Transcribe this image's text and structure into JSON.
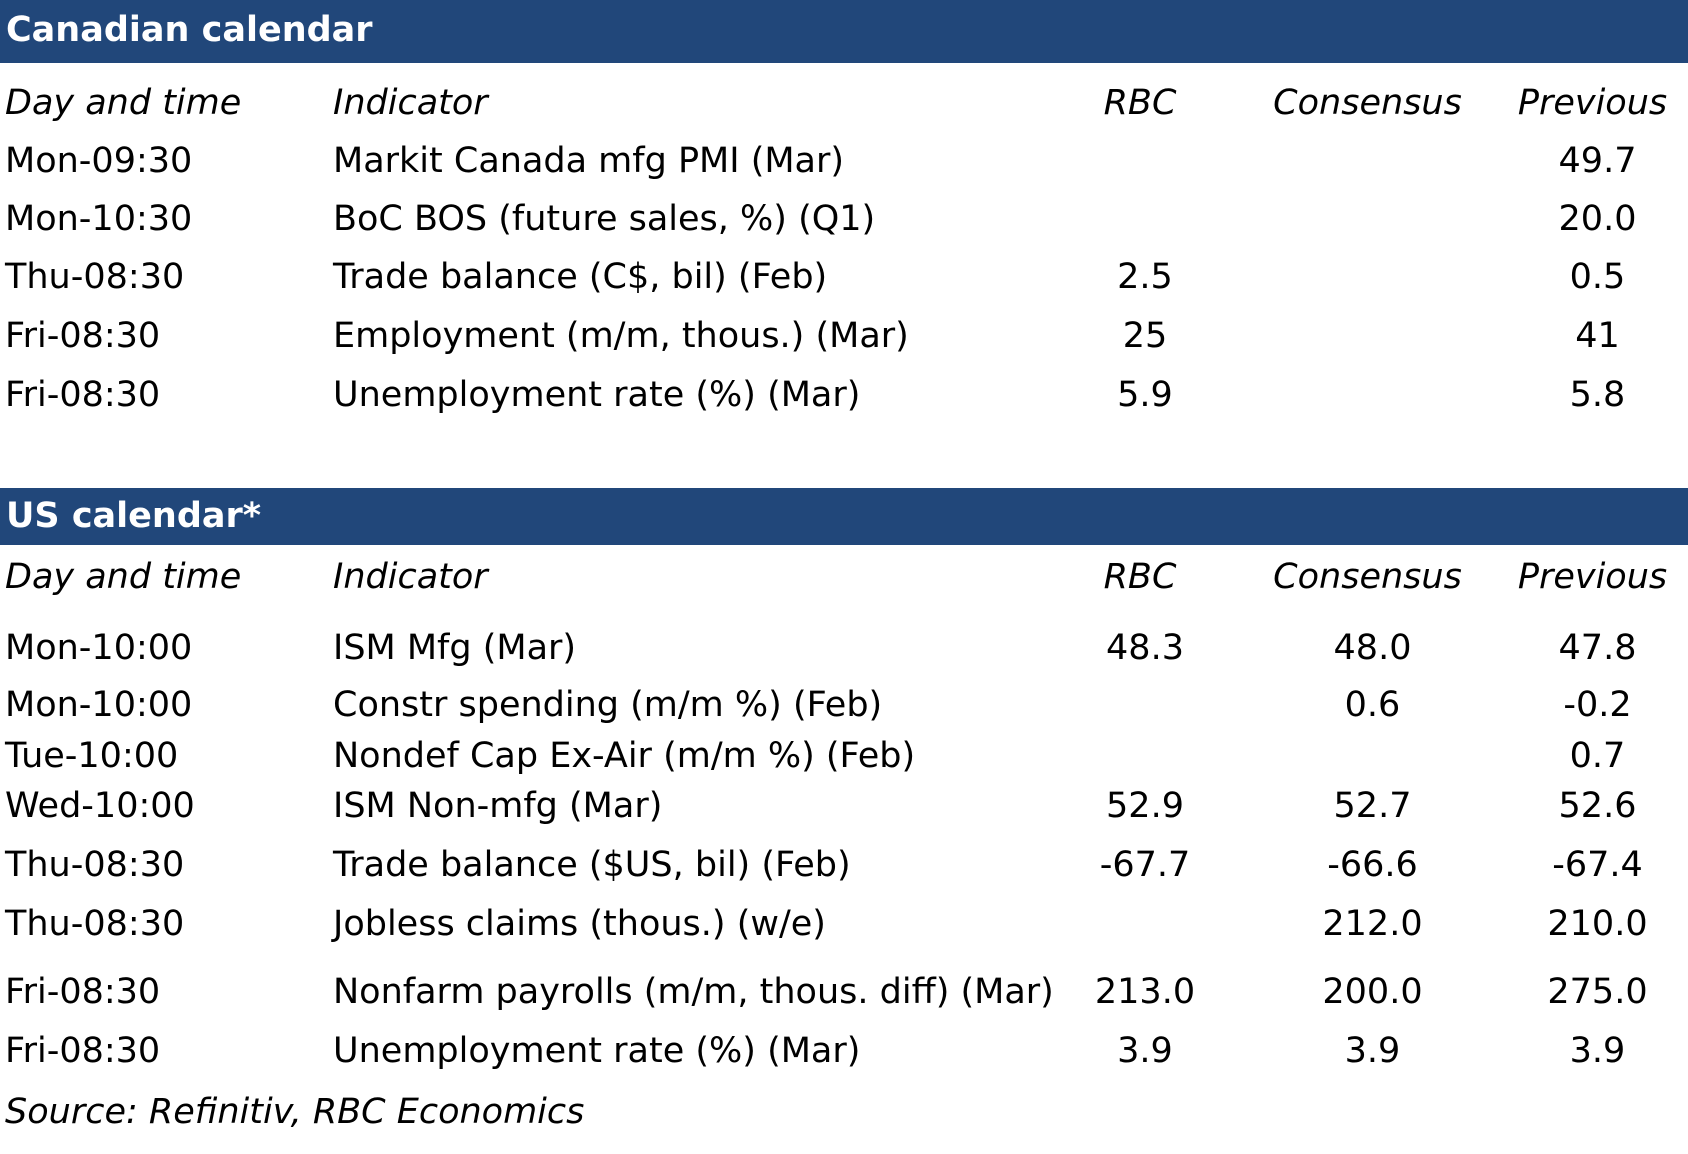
{
  "colors": {
    "banner_bg": "#21477a",
    "banner_text": "#ffffff"
  },
  "canada": {
    "title": "Canadian calendar",
    "headers": {
      "time": "Day and time",
      "indicator": "Indicator",
      "rbc": "RBC",
      "consensus": "Consensus",
      "previous": "Previous"
    },
    "rows": [
      {
        "time": "Mon-09:30",
        "indicator": "Markit Canada mfg PMI (Mar)",
        "rbc": "",
        "consensus": "",
        "previous": "49.7"
      },
      {
        "time": "Mon-10:30",
        "indicator": "BoC BOS (future sales, %) (Q1)",
        "rbc": "",
        "consensus": "",
        "previous": "20.0"
      },
      {
        "time": "Thu-08:30",
        "indicator": "Trade balance (C$, bil) (Feb)",
        "rbc": "2.5",
        "consensus": "",
        "previous": "0.5"
      },
      {
        "time": "Fri-08:30",
        "indicator": "Employment (m/m, thous.) (Mar)",
        "rbc": "25",
        "consensus": "",
        "previous": "41"
      },
      {
        "time": "Fri-08:30",
        "indicator": "Unemployment rate (%) (Mar)",
        "rbc": "5.9",
        "consensus": "",
        "previous": "5.8"
      }
    ]
  },
  "us": {
    "title": "US calendar*",
    "headers": {
      "time": "Day and time",
      "indicator": "Indicator",
      "rbc": "RBC",
      "consensus": "Consensus",
      "previous": "Previous"
    },
    "rows": [
      {
        "time": "Mon-10:00",
        "indicator": "ISM Mfg (Mar)",
        "rbc": "48.3",
        "consensus": "48.0",
        "previous": "47.8"
      },
      {
        "time": "Mon-10:00",
        "indicator": "Constr spending (m/m %) (Feb)",
        "rbc": "",
        "consensus": "0.6",
        "previous": "-0.2"
      },
      {
        "time": "Tue-10:00",
        "indicator": "Nondef Cap Ex-Air (m/m %) (Feb)",
        "rbc": "",
        "consensus": "",
        "previous": "0.7"
      },
      {
        "time": "Wed-10:00",
        "indicator": "ISM Non-mfg (Mar)",
        "rbc": "52.9",
        "consensus": "52.7",
        "previous": "52.6"
      },
      {
        "time": "Thu-08:30",
        "indicator": "Trade balance ($US, bil) (Feb)",
        "rbc": "-67.7",
        "consensus": "-66.6",
        "previous": "-67.4"
      },
      {
        "time": "Thu-08:30",
        "indicator": "Jobless claims (thous.) (w/e)",
        "rbc": "",
        "consensus": "212.0",
        "previous": "210.0"
      },
      {
        "time": "Fri-08:30",
        "indicator": "Nonfarm payrolls (m/m, thous. diff) (Mar)",
        "rbc": "213.0",
        "consensus": "200.0",
        "previous": "275.0"
      },
      {
        "time": "Fri-08:30",
        "indicator": "Unemployment rate (%) (Mar)",
        "rbc": "3.9",
        "consensus": "3.9",
        "previous": "3.9"
      }
    ]
  },
  "source": "Source: Refinitiv,  RBC Economics"
}
